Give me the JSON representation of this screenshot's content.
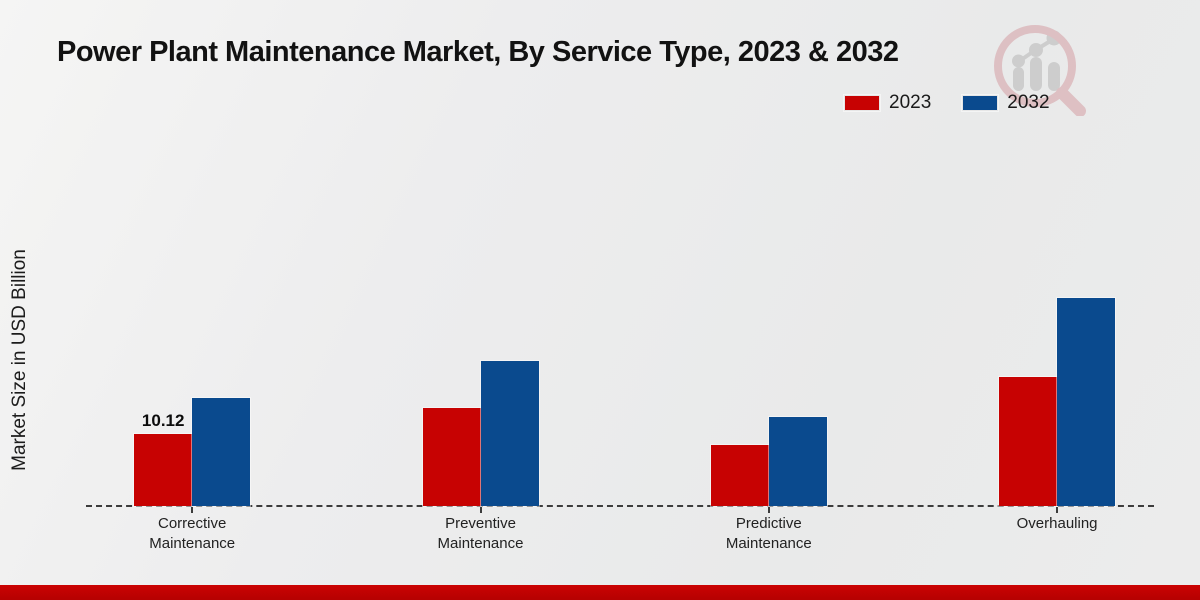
{
  "title": "Power Plant Maintenance Market, By Service Type, 2023 & 2032",
  "y_axis_label": "Market Size in USD Billion",
  "legend": [
    {
      "label": "2023",
      "color": "#c70202"
    },
    {
      "label": "2032",
      "color": "#0a4a8e"
    }
  ],
  "watermark_icon": "magnifier-bar-chart-logo",
  "colors": {
    "series_2023": "#c70202",
    "series_2032": "#0a4a8e",
    "footer_bar": "#c00101",
    "axis": "#3c3c3c",
    "background": "#ececec"
  },
  "chart_data": {
    "type": "bar",
    "title": "Power Plant Maintenance Market, By Service Type, 2023 & 2032",
    "categories": [
      "Corrective Maintenance",
      "Preventive Maintenance",
      "Predictive Maintenance",
      "Overhauling"
    ],
    "series": [
      {
        "name": "2023",
        "color": "#c70202",
        "values": [
          10.12,
          13.8,
          8.6,
          18.1
        ]
      },
      {
        "name": "2032",
        "color": "#0a4a8e",
        "values": [
          15.2,
          20.4,
          12.5,
          29.2
        ]
      }
    ],
    "data_labels": [
      {
        "series": "2023",
        "category": "Corrective Maintenance",
        "text": "10.12"
      }
    ],
    "xlabel": "",
    "ylabel": "Market Size in USD Billion",
    "ylim": [
      0,
      32
    ],
    "grid": false,
    "y_axis_ticks_visible": false,
    "baseline_style": "dashed",
    "legend_position": "top-right"
  }
}
